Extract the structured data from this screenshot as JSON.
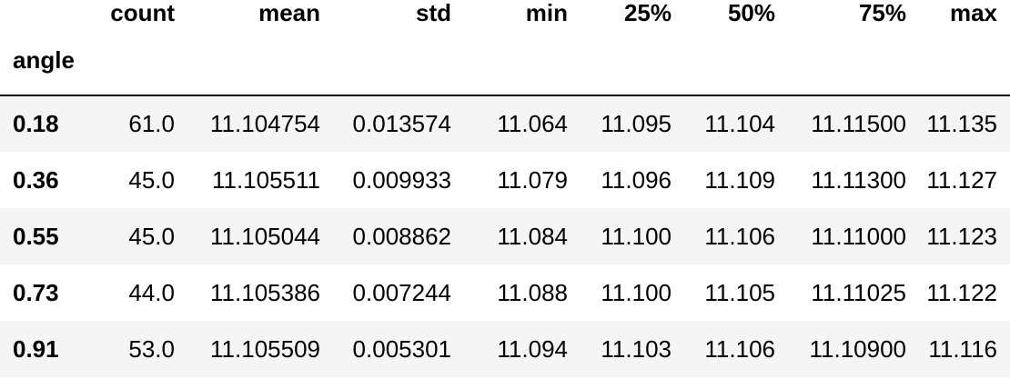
{
  "table": {
    "index_name": "angle",
    "columns": [
      "count",
      "mean",
      "std",
      "min",
      "25%",
      "50%",
      "75%",
      "max"
    ],
    "rows": [
      {
        "label": "0.18",
        "values": [
          "61.0",
          "11.104754",
          "0.013574",
          "11.064",
          "11.095",
          "11.104",
          "11.11500",
          "11.135"
        ]
      },
      {
        "label": "0.36",
        "values": [
          "45.0",
          "11.105511",
          "0.009933",
          "11.079",
          "11.096",
          "11.109",
          "11.11300",
          "11.127"
        ]
      },
      {
        "label": "0.55",
        "values": [
          "45.0",
          "11.105044",
          "0.008862",
          "11.084",
          "11.100",
          "11.106",
          "11.11000",
          "11.123"
        ]
      },
      {
        "label": "0.73",
        "values": [
          "44.0",
          "11.105386",
          "0.007244",
          "11.088",
          "11.100",
          "11.105",
          "11.11025",
          "11.122"
        ]
      },
      {
        "label": "0.91",
        "values": [
          "53.0",
          "11.105509",
          "0.005301",
          "11.094",
          "11.103",
          "11.106",
          "11.10900",
          "11.116"
        ]
      }
    ]
  }
}
